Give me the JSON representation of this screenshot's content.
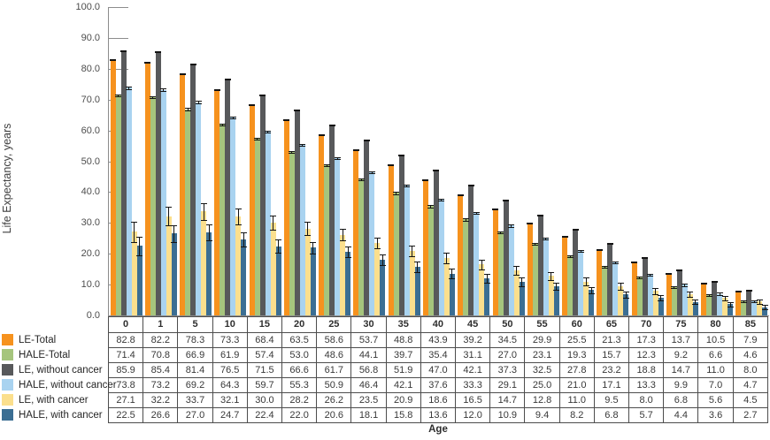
{
  "chart_data": {
    "type": "bar",
    "title": "",
    "ylabel": "Life Expectancy, years",
    "xlabel": "Age",
    "ylim": [
      0,
      100
    ],
    "ytick_step": 10,
    "ytick_labels": [
      "0.0",
      "10.0",
      "20.0",
      "30.0",
      "40.0",
      "50.0",
      "60.0",
      "70.0",
      "80.0",
      "90.0",
      "100.0"
    ],
    "grid": false,
    "legend_position": "bottom-left",
    "error_bars": true,
    "categories": [
      "0",
      "1",
      "5",
      "10",
      "15",
      "20",
      "25",
      "30",
      "35",
      "40",
      "45",
      "50",
      "55",
      "60",
      "65",
      "70",
      "75",
      "80",
      "85"
    ],
    "series": [
      {
        "name": "LE-Total",
        "color": "#F6921E",
        "values": [
          82.8,
          82.2,
          78.3,
          73.3,
          68.4,
          63.5,
          58.6,
          53.7,
          48.8,
          43.9,
          39.2,
          34.5,
          29.9,
          25.5,
          21.3,
          17.3,
          13.7,
          10.5,
          7.9
        ],
        "errors": [
          0.4,
          0.4,
          0.4,
          0.4,
          0.4,
          0.4,
          0.4,
          0.4,
          0.4,
          0.4,
          0.4,
          0.4,
          0.4,
          0.4,
          0.4,
          0.4,
          0.4,
          0.4,
          0.4
        ]
      },
      {
        "name": "HALE-Total",
        "color": "#A6C57D",
        "values": [
          71.4,
          70.8,
          66.9,
          61.9,
          57.4,
          53.0,
          48.6,
          44.1,
          39.7,
          35.4,
          31.1,
          27.0,
          23.1,
          19.3,
          15.7,
          12.3,
          9.2,
          6.6,
          4.6
        ],
        "errors": [
          0.6,
          0.6,
          0.6,
          0.6,
          0.6,
          0.6,
          0.6,
          0.6,
          0.6,
          0.6,
          0.6,
          0.6,
          0.6,
          0.6,
          0.6,
          0.6,
          0.6,
          0.6,
          0.6
        ]
      },
      {
        "name": "LE, without cancer",
        "color": "#58595B",
        "values": [
          85.9,
          85.4,
          81.4,
          76.5,
          71.5,
          66.6,
          61.7,
          56.8,
          51.9,
          47.0,
          42.1,
          37.3,
          32.5,
          27.8,
          23.2,
          18.8,
          14.7,
          11.0,
          8.0
        ],
        "errors": [
          0.4,
          0.4,
          0.4,
          0.4,
          0.4,
          0.4,
          0.4,
          0.4,
          0.4,
          0.4,
          0.4,
          0.4,
          0.4,
          0.4,
          0.4,
          0.4,
          0.4,
          0.4,
          0.4
        ]
      },
      {
        "name": "HALE, without cancer",
        "color": "#A9D3F0",
        "values": [
          73.8,
          73.2,
          69.2,
          64.3,
          59.7,
          55.3,
          50.9,
          46.4,
          42.1,
          37.6,
          33.3,
          29.1,
          25.0,
          21.0,
          17.1,
          13.3,
          9.9,
          7.0,
          4.7
        ],
        "errors": [
          0.6,
          0.6,
          0.6,
          0.6,
          0.6,
          0.6,
          0.6,
          0.6,
          0.6,
          0.6,
          0.6,
          0.6,
          0.6,
          0.6,
          0.6,
          0.6,
          0.6,
          0.6,
          0.6
        ]
      },
      {
        "name": "LE, with cancer",
        "color": "#FBDF8D",
        "values": [
          27.1,
          32.2,
          33.7,
          32.1,
          30.0,
          28.2,
          26.2,
          23.5,
          20.9,
          18.6,
          16.5,
          14.7,
          12.8,
          11.0,
          9.5,
          8.0,
          6.8,
          5.6,
          4.5
        ],
        "errors": [
          3.5,
          3.2,
          3.0,
          2.8,
          2.6,
          2.4,
          2.2,
          2.1,
          2.0,
          1.9,
          1.8,
          1.7,
          1.6,
          1.5,
          1.4,
          1.3,
          1.2,
          1.1,
          1.0
        ]
      },
      {
        "name": "HALE, with cancer",
        "color": "#3B6E93",
        "values": [
          22.5,
          26.6,
          27.0,
          24.7,
          22.4,
          22.0,
          20.6,
          18.1,
          15.8,
          13.6,
          12.0,
          10.9,
          9.4,
          8.2,
          6.8,
          5.7,
          4.4,
          3.6,
          2.7
        ],
        "errors": [
          3.2,
          3.0,
          2.8,
          2.6,
          2.4,
          2.2,
          2.1,
          2.0,
          1.9,
          1.8,
          1.7,
          1.6,
          1.5,
          1.4,
          1.3,
          1.2,
          1.1,
          1.0,
          0.9
        ]
      }
    ]
  },
  "style": {
    "axis_color": "#8C8C8C",
    "table_border_color": "#4D4D4D",
    "errorbar_color": "#141414"
  }
}
